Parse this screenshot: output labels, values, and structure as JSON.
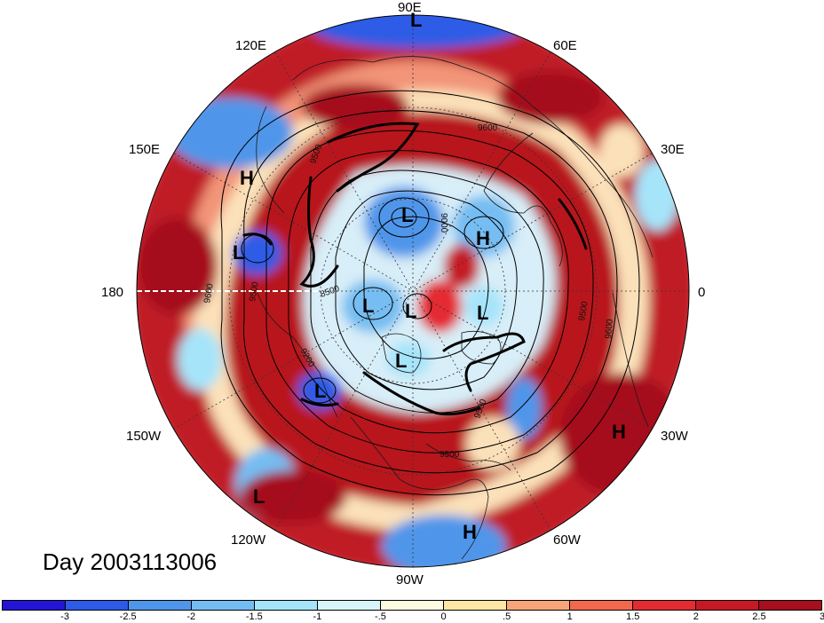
{
  "day_label": "Day 2003113006",
  "longitude_labels": {
    "n90e": "90E",
    "n120e": "120E",
    "n60e": "60E",
    "n150e": "150E",
    "n30e": "30E",
    "n180": "180",
    "n0": "0",
    "n150w": "150W",
    "n30w": "30W",
    "n120w": "120W",
    "n60w": "60W",
    "n90w": "90W"
  },
  "pressure_centers": [
    {
      "type": "L"
    },
    {
      "type": "H"
    },
    {
      "type": "L"
    },
    {
      "type": "L"
    },
    {
      "type": "H"
    },
    {
      "type": "L"
    },
    {
      "type": "L"
    },
    {
      "type": "L"
    },
    {
      "type": "L"
    },
    {
      "type": "L"
    },
    {
      "type": "H"
    },
    {
      "type": "L"
    },
    {
      "type": "H"
    }
  ],
  "contour_labels": [
    "9600",
    "9000",
    "9500",
    "8500",
    "9200",
    "9500",
    "9600",
    "9500",
    "9600",
    "9500",
    "9500"
  ],
  "colorbar": {
    "colors": [
      "#2415d6",
      "#2d5be6",
      "#4f96ea",
      "#74bdf2",
      "#a6e4fa",
      "#d9f5fc",
      "#fdfbe0",
      "#fde6a6",
      "#f8a57a",
      "#f0694e",
      "#e42b32",
      "#c51a26",
      "#a50f1e"
    ],
    "labels": [
      "-3",
      "-2.5",
      "-2",
      "-1.5",
      "-1",
      "-.5",
      "0",
      ".5",
      "1",
      "1.5",
      "2",
      "2.5",
      "3"
    ]
  },
  "colors": {
    "strong_positive": "#a50f1e",
    "positive": "#e42b32",
    "weak_positive": "#f8a57a",
    "neutral": "#fdfbe0",
    "weak_negative": "#a6e4fa",
    "negative": "#4f96ea",
    "strong_negative": "#2d5be6"
  }
}
